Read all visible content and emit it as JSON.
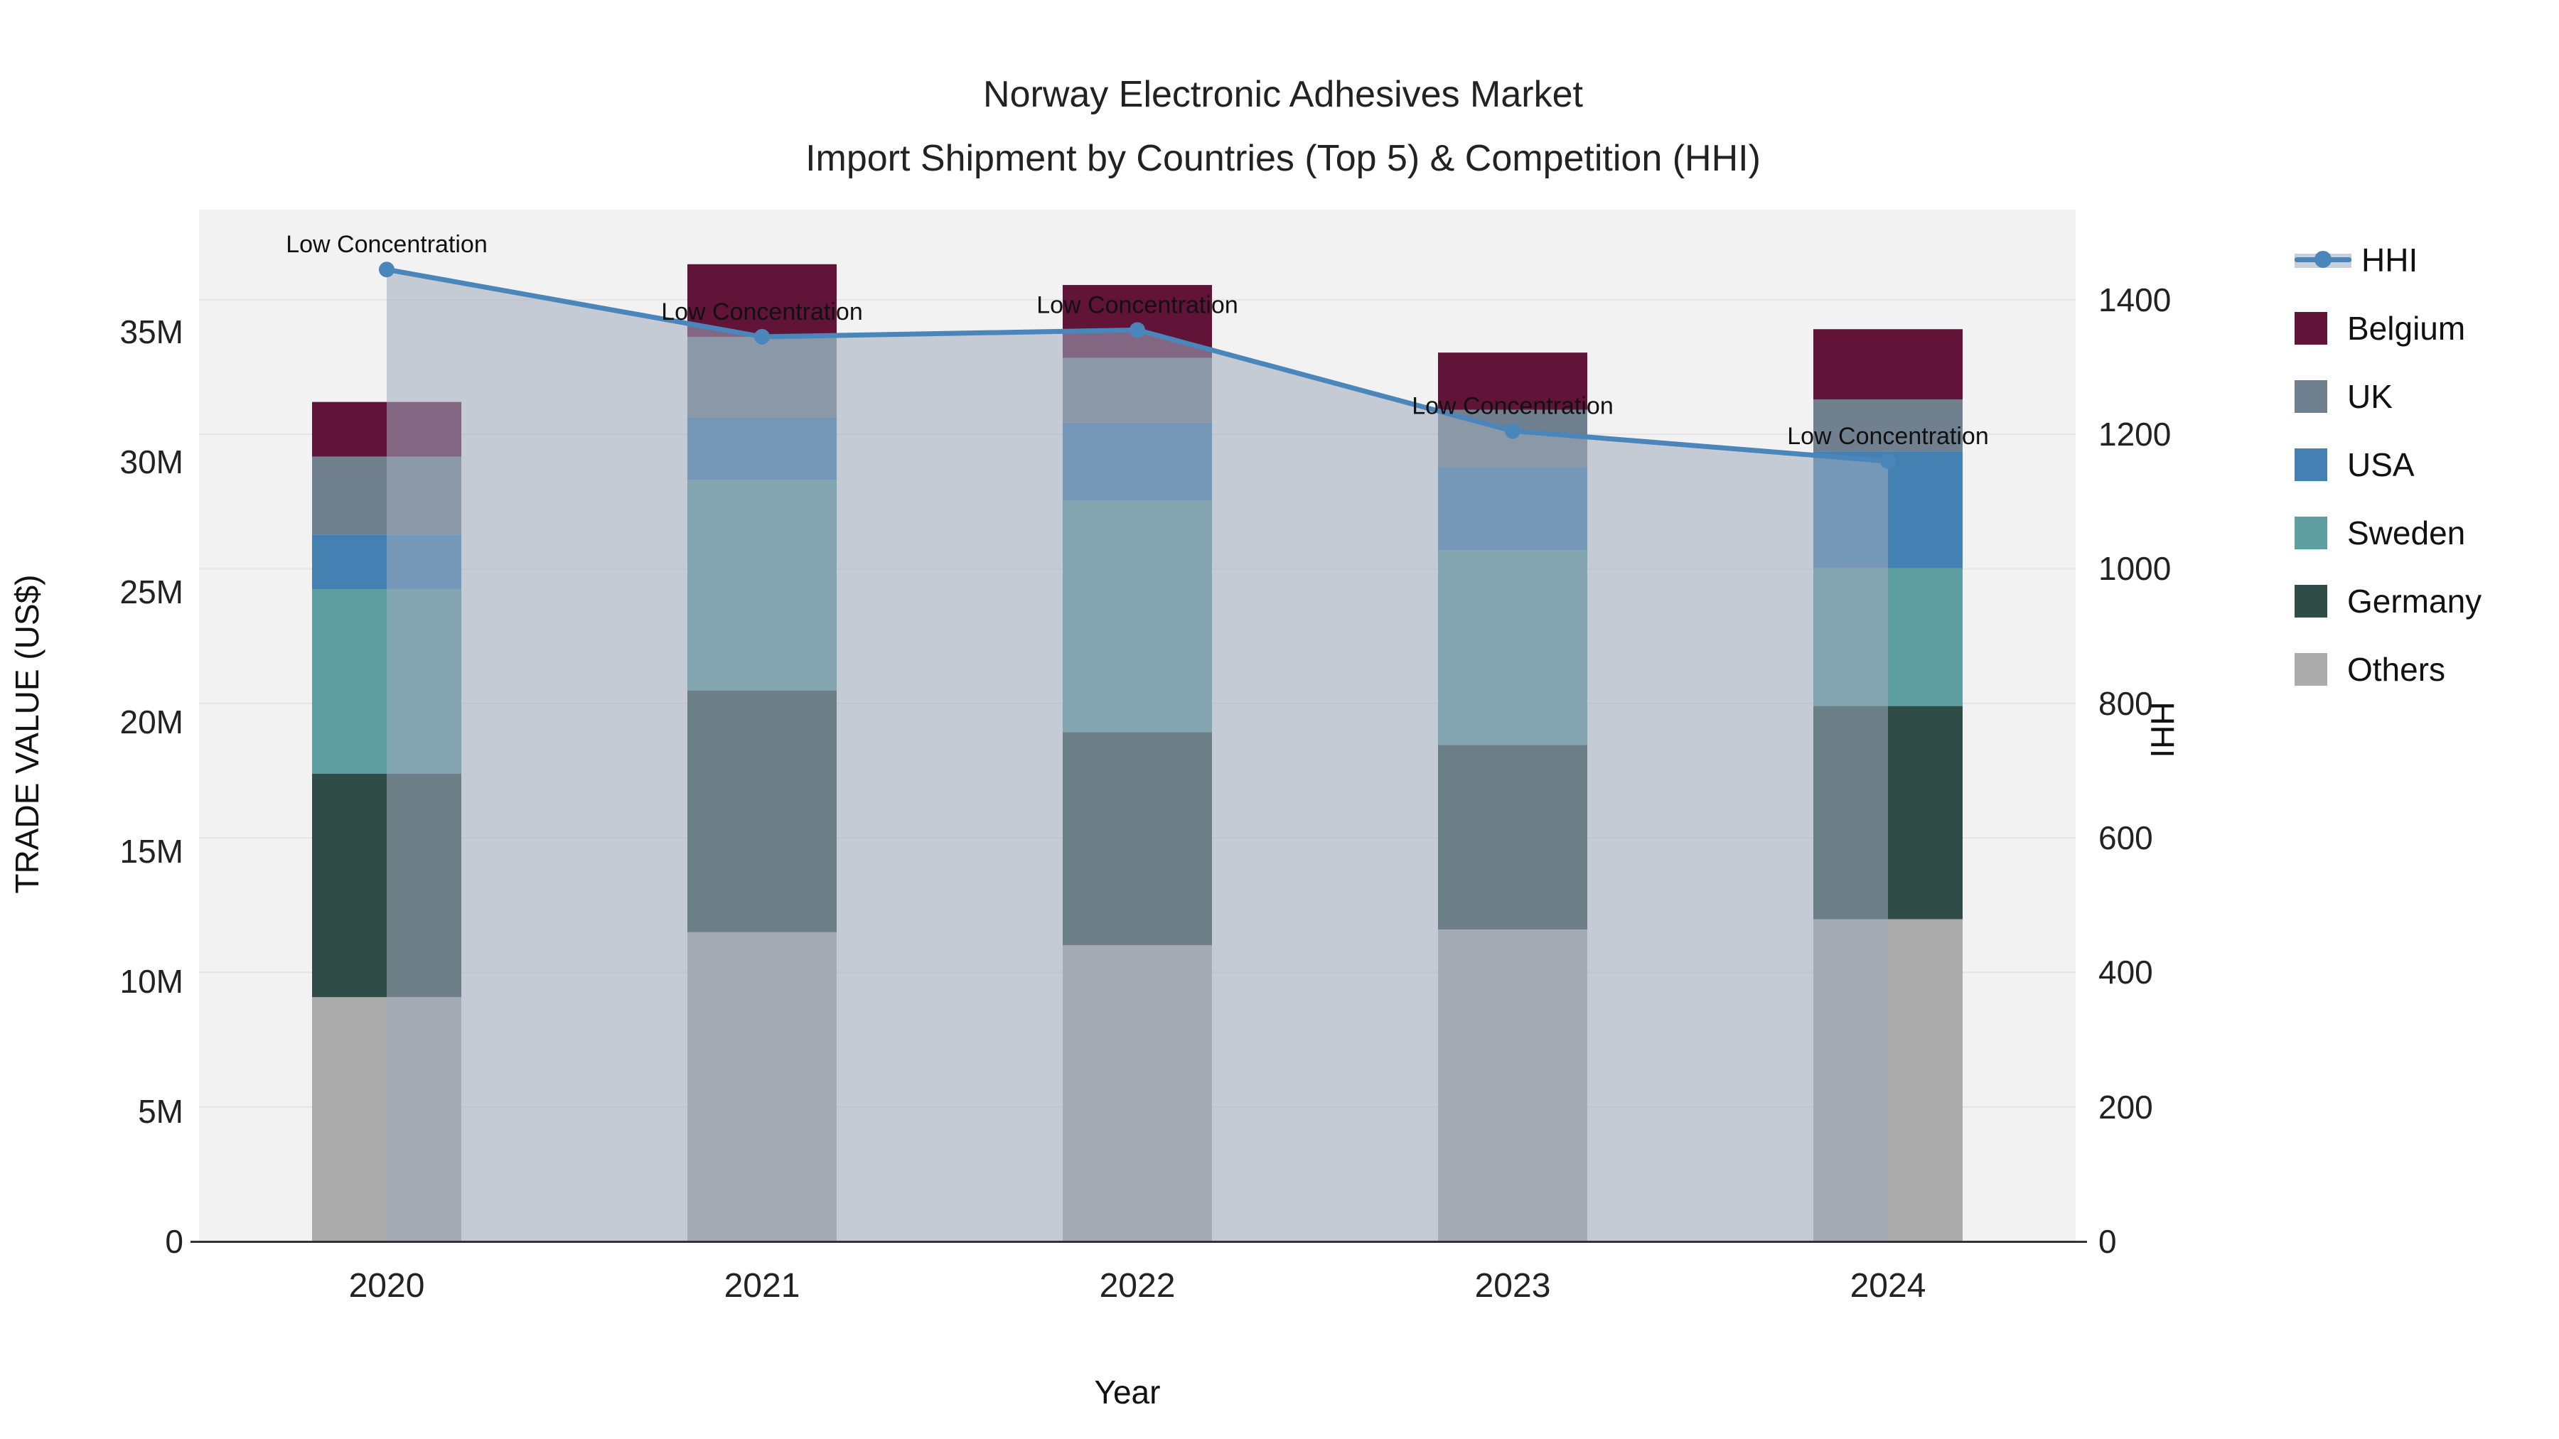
{
  "title": {
    "line1": "Norway Electronic Adhesives Market",
    "line2": "Import Shipment by Countries (Top 5) & Competition (HHI)"
  },
  "axes": {
    "left": {
      "title": "TRADE VALUE (US$)",
      "ticks": [
        "0",
        "5M",
        "10M",
        "15M",
        "20M",
        "25M",
        "30M",
        "35M"
      ],
      "tick_values": [
        0,
        5,
        10,
        15,
        20,
        25,
        30,
        35
      ]
    },
    "right": {
      "title": "HHI",
      "ticks": [
        "0",
        "200",
        "400",
        "600",
        "800",
        "1000",
        "1200",
        "1400"
      ],
      "tick_values": [
        0,
        200,
        400,
        600,
        800,
        1000,
        1200,
        1400
      ]
    },
    "x": {
      "title": "Year"
    }
  },
  "legend": {
    "items": [
      {
        "label": "HHI",
        "type": "line",
        "color": "#4a86ba"
      },
      {
        "label": "Belgium",
        "type": "swatch",
        "color": "#611338"
      },
      {
        "label": "UK",
        "type": "swatch",
        "color": "#71808f"
      },
      {
        "label": "USA",
        "type": "swatch",
        "color": "#4480b2"
      },
      {
        "label": "Sweden",
        "type": "swatch",
        "color": "#5f9fa1"
      },
      {
        "label": "Germany",
        "type": "swatch",
        "color": "#2f4c47"
      },
      {
        "label": "Others",
        "type": "swatch",
        "color": "#ababab"
      }
    ]
  },
  "chart_data": {
    "type": "bar+line",
    "title": "Norway Electronic Adhesives Market — Import Shipment by Countries (Top 5) & Competition (HHI)",
    "categories": [
      "2020",
      "2021",
      "2022",
      "2023",
      "2024"
    ],
    "xlabel": "Year",
    "ylabel": "TRADE VALUE (US$)",
    "y2label": "HHI",
    "ylim": [
      0,
      39.7
    ],
    "y2lim": [
      0,
      1534
    ],
    "grid": "horizontal, every 200 HHI units",
    "legend_position": "right",
    "units": "millions US$",
    "stack_order_bottom_to_top": [
      "Others",
      "Germany",
      "Sweden",
      "USA",
      "UK",
      "Belgium"
    ],
    "series": [
      {
        "name": "Others",
        "type": "bar",
        "color": "#ababab",
        "values": [
          9.4,
          11.9,
          11.4,
          12.0,
          12.4
        ]
      },
      {
        "name": "Germany",
        "type": "bar",
        "color": "#2f4c47",
        "values": [
          8.6,
          9.3,
          8.2,
          7.1,
          8.2
        ]
      },
      {
        "name": "Sweden",
        "type": "bar",
        "color": "#5f9fa1",
        "values": [
          7.1,
          8.1,
          8.9,
          7.5,
          5.3
        ]
      },
      {
        "name": "USA",
        "type": "bar",
        "color": "#4480b2",
        "values": [
          2.1,
          2.4,
          3.0,
          3.2,
          4.5
        ]
      },
      {
        "name": "UK",
        "type": "bar",
        "color": "#71808f",
        "values": [
          3.0,
          3.1,
          2.5,
          2.2,
          2.0
        ]
      },
      {
        "name": "Belgium",
        "type": "bar",
        "color": "#611338",
        "values": [
          2.1,
          2.8,
          2.8,
          2.2,
          2.7
        ]
      }
    ],
    "bar_totals": [
      32.3,
      37.6,
      36.8,
      34.2,
      35.1
    ],
    "hhi": {
      "name": "HHI",
      "type": "line+area",
      "axis": "right",
      "color": "#4a86ba",
      "area_color": "rgba(160,172,190,0.55)",
      "values": [
        1445,
        1345,
        1355,
        1205,
        1160
      ]
    },
    "annotations": [
      "Low Concentration",
      "Low Concentration",
      "Low Concentration",
      "Low Concentration",
      "Low Concentration"
    ]
  }
}
